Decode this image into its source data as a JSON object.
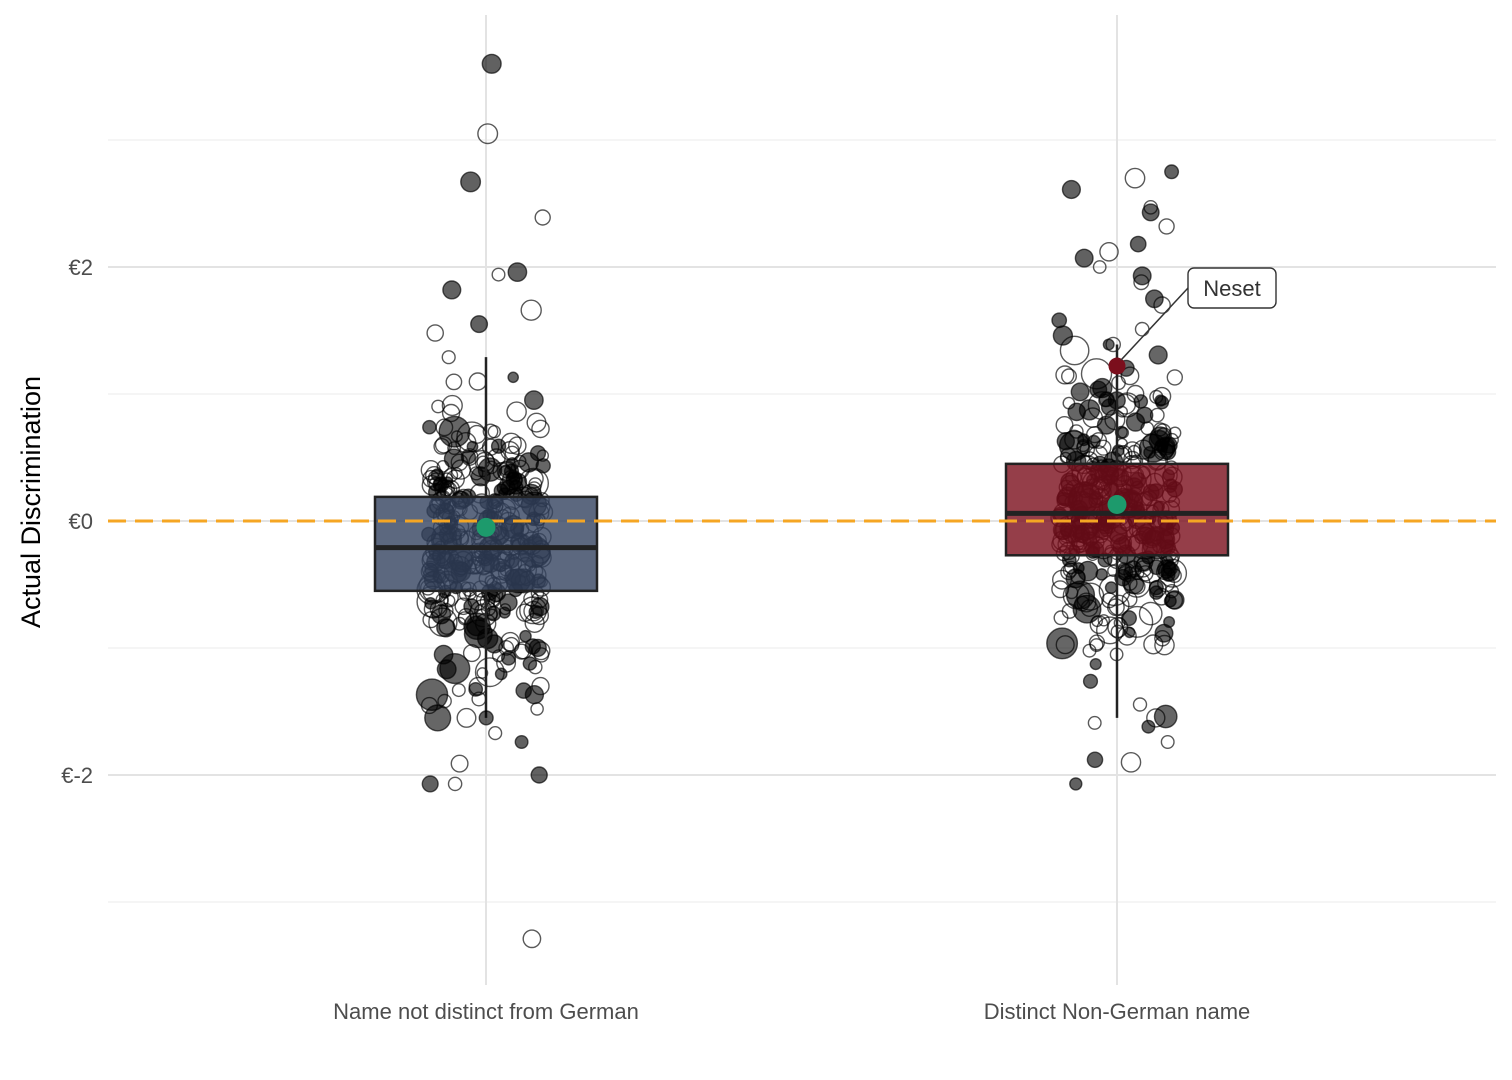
{
  "chart_data": {
    "type": "box",
    "title": "",
    "xlabel": "",
    "ylabel": "Actual Discrimination",
    "ylim": [
      -3.6,
      4.0
    ],
    "y_ticks": [
      -2,
      0,
      2
    ],
    "y_tick_labels": [
      "€-2",
      "€0",
      "€2"
    ],
    "y_minor_ticks": [
      -3,
      -1,
      1,
      3
    ],
    "grid": true,
    "legend": "none",
    "reference_line": {
      "y": 0,
      "style": "dashed",
      "color": "#f5a623"
    },
    "categories": [
      "Name not distinct from German",
      "Distinct Non-German name"
    ],
    "boxes": [
      {
        "category": "Name not distinct from German",
        "q1": -0.55,
        "median": -0.21,
        "q3": 0.19,
        "whisker_low": -1.55,
        "whisker_high": 1.29,
        "mean": -0.05,
        "fill": "#33425f",
        "mean_color": "#1d9a6c"
      },
      {
        "category": "Distinct Non-German name",
        "q1": -0.27,
        "median": 0.06,
        "q3": 0.45,
        "whisker_low": -1.55,
        "whisker_high": 1.39,
        "mean": 0.13,
        "fill": "#7b0e1c",
        "mean_color": "#1d9a6c"
      }
    ],
    "outliers": [
      {
        "category": "Name not distinct from German",
        "values": [
          3.6,
          3.05,
          2.67,
          2.39,
          1.96,
          1.94,
          1.82,
          1.66,
          1.55,
          1.48,
          -1.55,
          -1.67,
          -1.74,
          -1.91,
          -2.0,
          -2.07,
          -2.07,
          -3.29
        ]
      },
      {
        "category": "Distinct Non-German name",
        "values": [
          2.75,
          2.7,
          2.61,
          2.47,
          2.43,
          2.32,
          2.18,
          2.12,
          2.07,
          2.0,
          1.93,
          1.88,
          1.75,
          1.7,
          1.58,
          1.51,
          1.46,
          -1.59,
          -1.62,
          -1.74,
          -1.88,
          -1.9,
          -2.07
        ]
      }
    ],
    "highlight": {
      "label": "Neset",
      "category": "Distinct Non-German name",
      "value": 1.22,
      "color": "#7b0e1c"
    }
  }
}
